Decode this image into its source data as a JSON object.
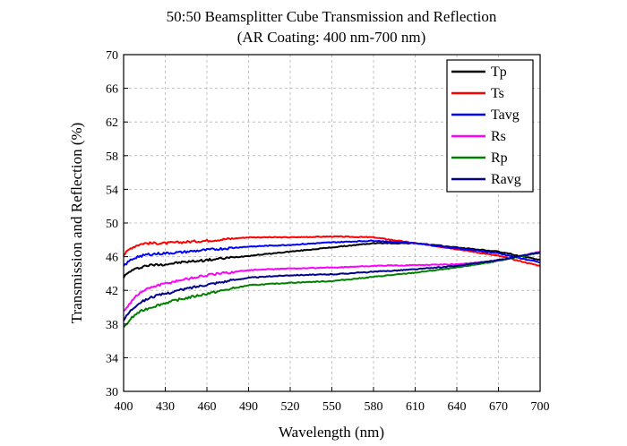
{
  "chart_data": {
    "type": "line",
    "title": "50:50 Beamsplitter Cube  Transmission and Reflection",
    "subtitle": "(AR Coating: 400 nm-700 nm)",
    "xlabel": "Wavelength (nm)",
    "ylabel": "Transmission and Reflection (%)",
    "xlim": [
      400,
      700
    ],
    "ylim": [
      30,
      70
    ],
    "xticks": [
      "400",
      "430",
      "460",
      "490",
      "520",
      "550",
      "580",
      "610",
      "640",
      "670",
      "700"
    ],
    "yticks": [
      "30",
      "34",
      "38",
      "42",
      "46",
      "50",
      "54",
      "58",
      "62",
      "66",
      "70"
    ],
    "grid": true,
    "legend_position": "top-right",
    "x": [
      400,
      405,
      410,
      415,
      420,
      430,
      440,
      460,
      490,
      520,
      550,
      580,
      610,
      640,
      670,
      700
    ],
    "series": [
      {
        "name": "Tp",
        "color": "#000000",
        "values": [
          43.6,
          44.3,
          44.6,
          44.9,
          45.0,
          45.1,
          45.3,
          45.6,
          46.1,
          46.6,
          47.1,
          47.6,
          47.6,
          47.1,
          46.6,
          45.6
        ]
      },
      {
        "name": "Ts",
        "color": "#ff0000",
        "values": [
          46.2,
          47.0,
          47.4,
          47.6,
          47.6,
          47.6,
          47.7,
          47.9,
          48.3,
          48.3,
          48.4,
          48.3,
          47.6,
          46.9,
          46.1,
          44.9
        ]
      },
      {
        "name": "Tavg",
        "color": "#0000ff",
        "values": [
          44.9,
          45.6,
          46.0,
          46.2,
          46.3,
          46.4,
          46.5,
          46.8,
          47.2,
          47.4,
          47.7,
          47.9,
          47.6,
          47.0,
          46.4,
          45.3
        ]
      },
      {
        "name": "Rs",
        "color": "#ff00ff",
        "values": [
          39.5,
          40.6,
          41.5,
          42.0,
          42.4,
          42.8,
          43.2,
          43.8,
          44.4,
          44.6,
          44.7,
          44.9,
          45.0,
          45.1,
          45.5,
          46.6
        ]
      },
      {
        "name": "Rp",
        "color": "#008000",
        "values": [
          37.5,
          38.6,
          39.3,
          39.7,
          40.0,
          40.5,
          40.9,
          41.6,
          42.6,
          42.9,
          43.1,
          43.6,
          44.1,
          44.7,
          45.5,
          46.5
        ]
      },
      {
        "name": "Ravg",
        "color": "#00008b",
        "values": [
          38.5,
          39.6,
          40.4,
          40.8,
          41.2,
          41.6,
          42.0,
          42.7,
          43.5,
          43.8,
          43.9,
          44.2,
          44.5,
          44.9,
          45.6,
          46.5
        ]
      }
    ]
  }
}
